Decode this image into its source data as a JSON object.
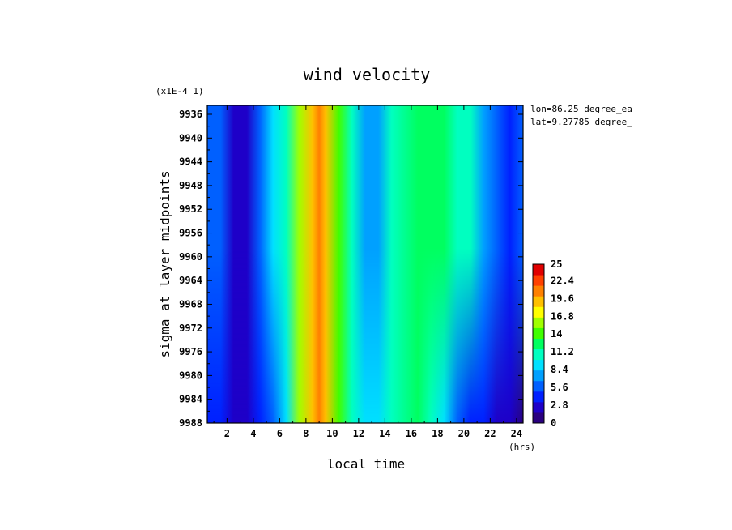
{
  "chart_data": {
    "type": "heatmap",
    "title": "wind velocity",
    "xlabel": "local time",
    "x_unit": "(hrs)",
    "ylabel": "sigma at layer midpoints",
    "y_multiplier": "(x1E-4 1)",
    "x_ticks": [
      "2",
      "4",
      "6",
      "8",
      "10",
      "12",
      "14",
      "16",
      "18",
      "20",
      "22",
      "24"
    ],
    "y_ticks": [
      "9936",
      "9940",
      "9944",
      "9948",
      "9952",
      "9956",
      "9960",
      "9964",
      "9968",
      "9972",
      "9976",
      "9980",
      "9984",
      "9988"
    ],
    "xlim": [
      0.5,
      24.5
    ],
    "ylim": [
      9934.5,
      9988
    ],
    "annotations": [
      "lon=86.25 degree_ea",
      "lat=9.27785 degree_"
    ],
    "colorbar": {
      "ticks": [
        "25",
        "22.4",
        "19.6",
        "16.8",
        "14",
        "11.2",
        "8.4",
        "5.6",
        "2.8",
        "0"
      ],
      "range": [
        0,
        25
      ],
      "colors": [
        "#2a0080",
        "#1e00c8",
        "#0020ff",
        "#0060ff",
        "#00a0ff",
        "#00e0ff",
        "#00ffc0",
        "#00ff60",
        "#40ff00",
        "#a0ff00",
        "#ffff00",
        "#ffc000",
        "#ff8000",
        "#ff4000",
        "#e00000"
      ]
    },
    "profile_top": {
      "x": [
        0.5,
        1.5,
        2.5,
        3.5,
        4.5,
        5.5,
        6.5,
        7.5,
        8.5,
        9.0,
        9.5,
        10.5,
        11.5,
        12.5,
        13.5,
        14.5,
        16.5,
        18.5,
        19.5,
        20.5,
        21.5,
        22.5,
        23.5,
        24.5
      ],
      "values": [
        6.5,
        5.5,
        3.0,
        3.0,
        6.5,
        9.0,
        11.0,
        16.0,
        19.0,
        20.0,
        19.0,
        14.0,
        10.0,
        8.0,
        8.0,
        11.0,
        12.0,
        12.0,
        11.0,
        10.0,
        8.0,
        5.0,
        4.0,
        5.5
      ]
    },
    "profile_bottom": {
      "x": [
        0.5,
        1.5,
        2.5,
        3.5,
        4.5,
        5.5,
        6.5,
        7.5,
        8.5,
        9.0,
        9.5,
        10.5,
        11.5,
        12.5,
        13.5,
        14.5,
        16.5,
        17.5,
        18.5,
        19.5,
        20.5,
        21.5,
        22.5,
        23.5,
        24.5
      ],
      "values": [
        4.5,
        4.0,
        3.0,
        3.0,
        4.0,
        5.0,
        9.0,
        15.0,
        19.0,
        20.0,
        19.0,
        14.0,
        10.0,
        8.5,
        8.5,
        11.0,
        12.0,
        11.5,
        9.0,
        6.0,
        4.5,
        3.5,
        2.5,
        2.0,
        1.0
      ]
    }
  }
}
